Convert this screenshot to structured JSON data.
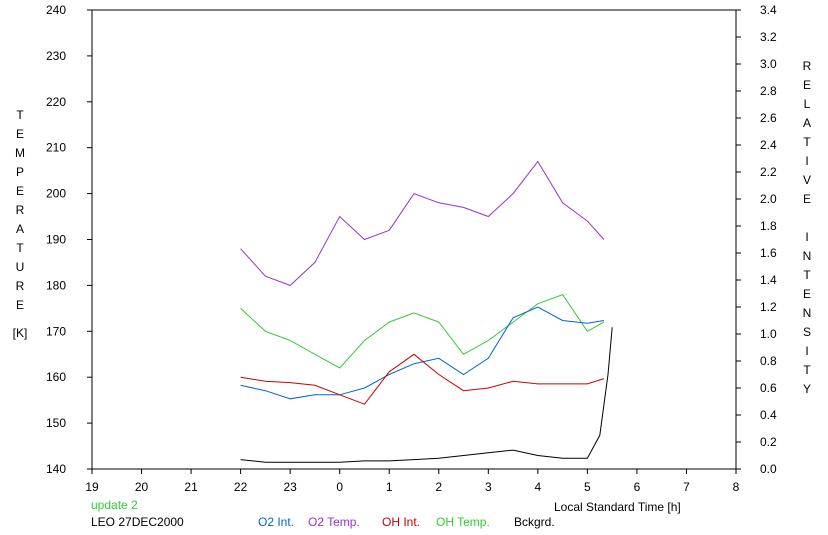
{
  "chart_data": {
    "type": "line",
    "xlabel": "Local Standard Time [h]",
    "ylabel_left_letters": [
      "T",
      "E",
      "M",
      "P",
      "E",
      "R",
      "A",
      "T",
      "U",
      "R",
      "E"
    ],
    "ylabel_left_unit": "[K]",
    "ylabel_right_letters": [
      "R",
      "E",
      "L",
      "A",
      "T",
      "I",
      "V",
      "E",
      "",
      "I",
      "N",
      "T",
      "E",
      "N",
      "S",
      "I",
      "T",
      "Y"
    ],
    "x_ticks": [
      "19",
      "20",
      "21",
      "22",
      "23",
      "0",
      "1",
      "2",
      "3",
      "4",
      "5",
      "6",
      "7",
      "8"
    ],
    "x_range_hours_since_19": [
      0,
      13
    ],
    "y_left": {
      "range": [
        140,
        240
      ],
      "ticks": [
        "140",
        "150",
        "160",
        "170",
        "180",
        "190",
        "200",
        "210",
        "220",
        "230",
        "240"
      ]
    },
    "y_right": {
      "range": [
        0.0,
        3.4
      ],
      "ticks": [
        "0.0",
        "0.2",
        "0.4",
        "0.6",
        "0.8",
        "1.0",
        "1.2",
        "1.4",
        "1.6",
        "1.8",
        "2.0",
        "2.2",
        "2.4",
        "2.6",
        "2.8",
        "3.0",
        "3.2",
        "3.4"
      ]
    },
    "grid": false,
    "series": [
      {
        "name": "O2 Temp.",
        "axis": "left",
        "color": "#9933cc",
        "x": [
          "22:00",
          "22:30",
          "23:00",
          "23:30",
          "0:00",
          "0:30",
          "1:00",
          "1:30",
          "2:00",
          "2:30",
          "3:00",
          "3:30",
          "4:00",
          "4:30",
          "5:00",
          "5:20"
        ],
        "y": [
          188,
          182,
          180,
          185,
          195,
          190,
          192,
          200,
          198,
          197,
          195,
          200,
          207,
          198,
          194,
          190
        ]
      },
      {
        "name": "OH Temp.",
        "axis": "left",
        "color": "#33cc33",
        "x": [
          "22:00",
          "22:30",
          "23:00",
          "23:30",
          "0:00",
          "0:30",
          "1:00",
          "1:30",
          "2:00",
          "2:30",
          "3:00",
          "3:30",
          "4:00",
          "4:30",
          "5:00",
          "5:20"
        ],
        "y": [
          175,
          170,
          168,
          165,
          162,
          168,
          172,
          174,
          172,
          165,
          168,
          172,
          176,
          178,
          170,
          172
        ]
      },
      {
        "name": "O2 Int.",
        "axis": "right",
        "color": "#0066cc",
        "x": [
          "22:00",
          "22:30",
          "23:00",
          "23:30",
          "0:00",
          "0:30",
          "1:00",
          "1:30",
          "2:00",
          "2:30",
          "3:00",
          "3:30",
          "4:00",
          "4:30",
          "5:00",
          "5:20"
        ],
        "y": [
          0.62,
          0.58,
          0.52,
          0.55,
          0.55,
          0.6,
          0.7,
          0.78,
          0.82,
          0.7,
          0.82,
          1.12,
          1.2,
          1.1,
          1.08,
          1.1
        ]
      },
      {
        "name": "OH Int.",
        "axis": "right",
        "color": "#cc0000",
        "x": [
          "22:00",
          "22:30",
          "23:00",
          "23:30",
          "0:00",
          "0:30",
          "1:00",
          "1:30",
          "2:00",
          "2:30",
          "3:00",
          "3:30",
          "4:00",
          "4:30",
          "5:00",
          "5:20"
        ],
        "y": [
          0.68,
          0.65,
          0.64,
          0.62,
          0.55,
          0.48,
          0.72,
          0.85,
          0.7,
          0.58,
          0.6,
          0.65,
          0.63,
          0.63,
          0.63,
          0.67
        ]
      },
      {
        "name": "Bckgrd.",
        "axis": "right",
        "color": "#000000",
        "x": [
          "22:00",
          "22:30",
          "23:00",
          "23:30",
          "0:00",
          "0:30",
          "1:00",
          "1:30",
          "2:00",
          "2:30",
          "3:00",
          "3:30",
          "4:00",
          "4:30",
          "5:00",
          "5:15",
          "5:25",
          "5:30"
        ],
        "y": [
          0.07,
          0.05,
          0.05,
          0.05,
          0.05,
          0.06,
          0.06,
          0.07,
          0.08,
          0.1,
          0.12,
          0.14,
          0.1,
          0.08,
          0.08,
          0.25,
          0.7,
          1.05
        ]
      }
    ]
  },
  "footer": {
    "update": "update 2",
    "update_color": "#33cc33",
    "station": "LEO 27DEC2000"
  },
  "legend": [
    {
      "label": "O2 Int.",
      "color": "#0066cc"
    },
    {
      "label": "O2 Temp.",
      "color": "#9933cc"
    },
    {
      "label": "OH Int.",
      "color": "#cc0000"
    },
    {
      "label": "OH Temp.",
      "color": "#33cc33"
    },
    {
      "label": "Bckgrd.",
      "color": "#000000"
    }
  ]
}
